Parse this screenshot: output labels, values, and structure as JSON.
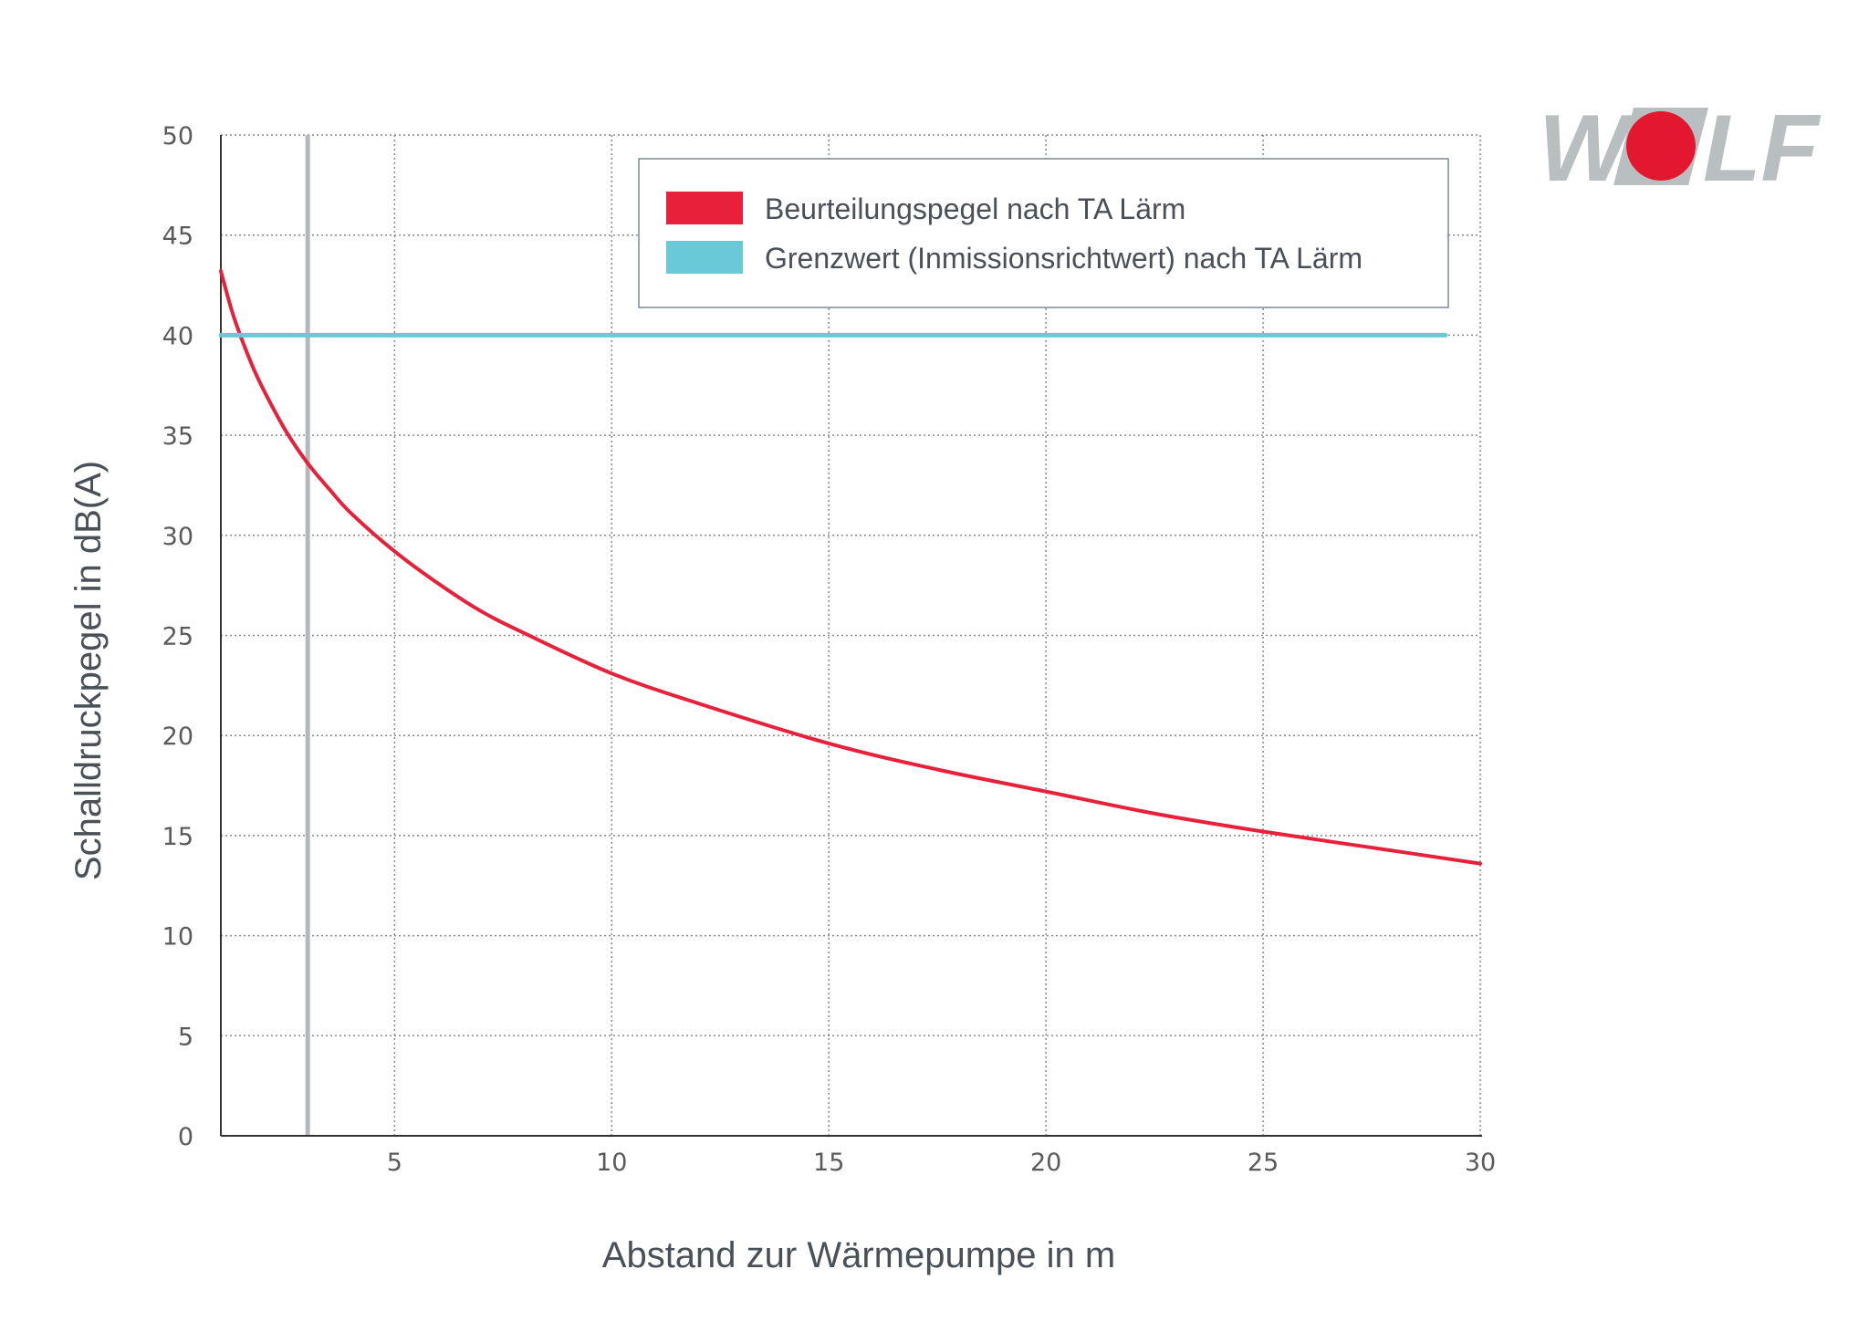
{
  "logo": {
    "text": "WOLF",
    "colors": {
      "grey": "#b9bec1",
      "red": "#e3172e"
    }
  },
  "chart_data": {
    "type": "line",
    "title": "",
    "xlabel": "Abstand zur Wärmepumpe in m",
    "ylabel": "Schalldruckpegel in dB(A)",
    "xlim": [
      1,
      30
    ],
    "ylim": [
      0,
      50
    ],
    "xticks": [
      5,
      10,
      15,
      20,
      25,
      30
    ],
    "yticks": [
      0,
      5,
      10,
      15,
      20,
      25,
      30,
      35,
      40,
      45,
      50
    ],
    "grid": true,
    "legend_position": "top-right",
    "reference_line_x": 3,
    "series": [
      {
        "name": "Beurteilungspegel nach TA Lärm",
        "color": "#e8203a",
        "x": [
          1,
          1.3,
          1.7,
          2,
          2.5,
          3,
          3.5,
          4,
          5,
          6,
          7,
          8,
          10,
          12,
          15,
          17.5,
          20,
          22.5,
          25,
          27.5,
          30
        ],
        "y": [
          43.2,
          40.9,
          38.6,
          37.2,
          35.2,
          33.6,
          32.3,
          31.1,
          29.2,
          27.6,
          26.2,
          25.1,
          23.1,
          21.6,
          19.6,
          18.3,
          17.2,
          16.1,
          15.2,
          14.4,
          13.6
        ]
      },
      {
        "name": "Grenzwert (Inmissionsrichtwert) nach TA Lärm",
        "color": "#69c9d6",
        "x": [
          1,
          29.2
        ],
        "y": [
          40,
          40
        ]
      }
    ]
  }
}
